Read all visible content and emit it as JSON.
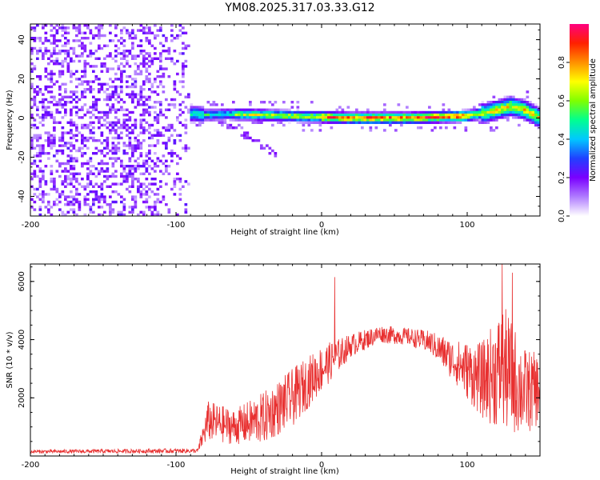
{
  "title": "YM08.2025.317.03.33.G12",
  "chart_data": [
    {
      "type": "heatmap",
      "xlabel": "Height of straight line (km)",
      "ylabel": "Frequency (Hz)",
      "xlim": [
        -200,
        150
      ],
      "ylim": [
        -50,
        48
      ],
      "xticks": [
        -200,
        -100,
        0,
        100
      ],
      "xtick_labels": [
        "-200",
        "-100",
        "0",
        "100"
      ],
      "yticks": [
        -40,
        -20,
        0,
        20,
        40
      ],
      "ytick_labels": [
        "-40",
        "-20",
        "0",
        "20",
        "40"
      ],
      "noise_region_x": [
        -200,
        -90
      ],
      "ridge_x": [
        -100,
        150
      ],
      "ridge_frequency": [
        {
          "x": -100,
          "f": 3
        },
        {
          "x": -80,
          "f": 1.5
        },
        {
          "x": -60,
          "f": 2
        },
        {
          "x": -40,
          "f": 1.5
        },
        {
          "x": -20,
          "f": 1
        },
        {
          "x": 0,
          "f": 0.5
        },
        {
          "x": 20,
          "f": 0
        },
        {
          "x": 40,
          "f": 0
        },
        {
          "x": 60,
          "f": 0
        },
        {
          "x": 80,
          "f": 0.5
        },
        {
          "x": 100,
          "f": 1
        },
        {
          "x": 115,
          "f": 3
        },
        {
          "x": 130,
          "f": 6
        },
        {
          "x": 140,
          "f": 4
        },
        {
          "x": 150,
          "f": 0
        }
      ],
      "colorbar": {
        "label": "Normalized spectral amplitude",
        "range": [
          0.0,
          1.0
        ],
        "ticks": [
          0.0,
          0.2,
          0.4,
          0.6,
          0.8
        ],
        "tick_labels": [
          "0.0",
          "0.2",
          "0.4",
          "0.6",
          "0.8"
        ],
        "colors": [
          "#ffffff",
          "#b07cff",
          "#7a00ff",
          "#2040ff",
          "#00c8ff",
          "#00ff90",
          "#80ff00",
          "#ffff00",
          "#ff9000",
          "#ff2000",
          "#ff0080"
        ]
      }
    },
    {
      "type": "line",
      "xlabel": "Height of straight line (km)",
      "ylabel": "SNR (10 * v/v)",
      "xlim": [
        -200,
        150
      ],
      "ylim": [
        0,
        6600
      ],
      "xticks": [
        -200,
        -100,
        0,
        100
      ],
      "xtick_labels": [
        "-200",
        "-100",
        "0",
        "100"
      ],
      "yticks": [
        2000,
        4000,
        6000
      ],
      "ytick_labels": [
        "2000",
        "4000",
        "6000"
      ],
      "series": [
        {
          "name": "SNR",
          "color": "#e83030",
          "envelope": [
            {
              "x": -200,
              "mean": 150,
              "spread": 60
            },
            {
              "x": -85,
              "mean": 180,
              "spread": 80
            },
            {
              "x": -78,
              "mean": 1200,
              "spread": 700
            },
            {
              "x": -60,
              "mean": 1000,
              "spread": 600
            },
            {
              "x": -40,
              "mean": 1300,
              "spread": 900
            },
            {
              "x": -20,
              "mean": 2000,
              "spread": 1000
            },
            {
              "x": 0,
              "mean": 3000,
              "spread": 800
            },
            {
              "x": 20,
              "mean": 3800,
              "spread": 400
            },
            {
              "x": 40,
              "mean": 4200,
              "spread": 300
            },
            {
              "x": 60,
              "mean": 4100,
              "spread": 300
            },
            {
              "x": 75,
              "mean": 3900,
              "spread": 400
            },
            {
              "x": 90,
              "mean": 3300,
              "spread": 700
            },
            {
              "x": 110,
              "mean": 2600,
              "spread": 1300
            },
            {
              "x": 125,
              "mean": 3000,
              "spread": 2200
            },
            {
              "x": 140,
              "mean": 2200,
              "spread": 1500
            },
            {
              "x": 150,
              "mean": 2300,
              "spread": 1200
            }
          ],
          "spikes": [
            {
              "x": 9,
              "y": 6150
            },
            {
              "x": 124,
              "y": 6600
            },
            {
              "x": 131,
              "y": 6300
            }
          ]
        }
      ]
    }
  ]
}
